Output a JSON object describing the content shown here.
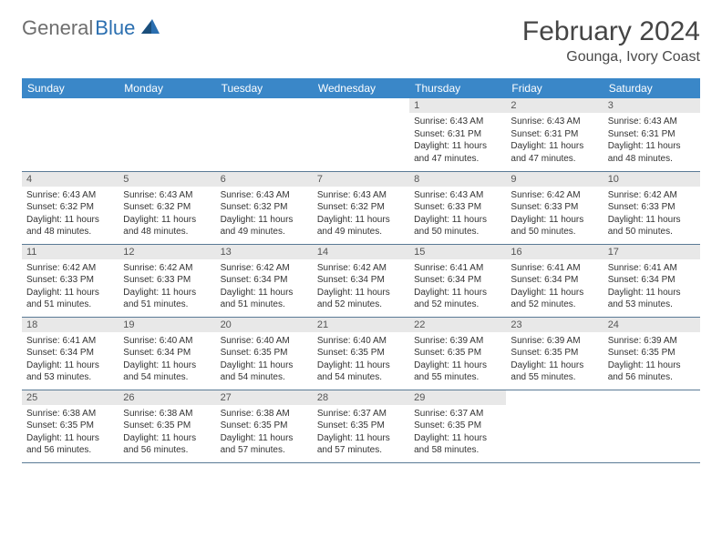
{
  "logo": {
    "gray": "General",
    "blue": "Blue"
  },
  "title": "February 2024",
  "location": "Gounga, Ivory Coast",
  "colors": {
    "header_bg": "#3a87c8",
    "header_text": "#ffffff",
    "daynum_bg": "#e8e8e8",
    "border": "#5a7a95",
    "logo_gray": "#6e6e6e",
    "logo_blue": "#2b6fb0"
  },
  "weekdays": [
    "Sunday",
    "Monday",
    "Tuesday",
    "Wednesday",
    "Thursday",
    "Friday",
    "Saturday"
  ],
  "weeks": [
    [
      {
        "n": "",
        "sr": "",
        "ss": "",
        "dl": ""
      },
      {
        "n": "",
        "sr": "",
        "ss": "",
        "dl": ""
      },
      {
        "n": "",
        "sr": "",
        "ss": "",
        "dl": ""
      },
      {
        "n": "",
        "sr": "",
        "ss": "",
        "dl": ""
      },
      {
        "n": "1",
        "sr": "Sunrise: 6:43 AM",
        "ss": "Sunset: 6:31 PM",
        "dl": "Daylight: 11 hours and 47 minutes."
      },
      {
        "n": "2",
        "sr": "Sunrise: 6:43 AM",
        "ss": "Sunset: 6:31 PM",
        "dl": "Daylight: 11 hours and 47 minutes."
      },
      {
        "n": "3",
        "sr": "Sunrise: 6:43 AM",
        "ss": "Sunset: 6:31 PM",
        "dl": "Daylight: 11 hours and 48 minutes."
      }
    ],
    [
      {
        "n": "4",
        "sr": "Sunrise: 6:43 AM",
        "ss": "Sunset: 6:32 PM",
        "dl": "Daylight: 11 hours and 48 minutes."
      },
      {
        "n": "5",
        "sr": "Sunrise: 6:43 AM",
        "ss": "Sunset: 6:32 PM",
        "dl": "Daylight: 11 hours and 48 minutes."
      },
      {
        "n": "6",
        "sr": "Sunrise: 6:43 AM",
        "ss": "Sunset: 6:32 PM",
        "dl": "Daylight: 11 hours and 49 minutes."
      },
      {
        "n": "7",
        "sr": "Sunrise: 6:43 AM",
        "ss": "Sunset: 6:32 PM",
        "dl": "Daylight: 11 hours and 49 minutes."
      },
      {
        "n": "8",
        "sr": "Sunrise: 6:43 AM",
        "ss": "Sunset: 6:33 PM",
        "dl": "Daylight: 11 hours and 50 minutes."
      },
      {
        "n": "9",
        "sr": "Sunrise: 6:42 AM",
        "ss": "Sunset: 6:33 PM",
        "dl": "Daylight: 11 hours and 50 minutes."
      },
      {
        "n": "10",
        "sr": "Sunrise: 6:42 AM",
        "ss": "Sunset: 6:33 PM",
        "dl": "Daylight: 11 hours and 50 minutes."
      }
    ],
    [
      {
        "n": "11",
        "sr": "Sunrise: 6:42 AM",
        "ss": "Sunset: 6:33 PM",
        "dl": "Daylight: 11 hours and 51 minutes."
      },
      {
        "n": "12",
        "sr": "Sunrise: 6:42 AM",
        "ss": "Sunset: 6:33 PM",
        "dl": "Daylight: 11 hours and 51 minutes."
      },
      {
        "n": "13",
        "sr": "Sunrise: 6:42 AM",
        "ss": "Sunset: 6:34 PM",
        "dl": "Daylight: 11 hours and 51 minutes."
      },
      {
        "n": "14",
        "sr": "Sunrise: 6:42 AM",
        "ss": "Sunset: 6:34 PM",
        "dl": "Daylight: 11 hours and 52 minutes."
      },
      {
        "n": "15",
        "sr": "Sunrise: 6:41 AM",
        "ss": "Sunset: 6:34 PM",
        "dl": "Daylight: 11 hours and 52 minutes."
      },
      {
        "n": "16",
        "sr": "Sunrise: 6:41 AM",
        "ss": "Sunset: 6:34 PM",
        "dl": "Daylight: 11 hours and 52 minutes."
      },
      {
        "n": "17",
        "sr": "Sunrise: 6:41 AM",
        "ss": "Sunset: 6:34 PM",
        "dl": "Daylight: 11 hours and 53 minutes."
      }
    ],
    [
      {
        "n": "18",
        "sr": "Sunrise: 6:41 AM",
        "ss": "Sunset: 6:34 PM",
        "dl": "Daylight: 11 hours and 53 minutes."
      },
      {
        "n": "19",
        "sr": "Sunrise: 6:40 AM",
        "ss": "Sunset: 6:34 PM",
        "dl": "Daylight: 11 hours and 54 minutes."
      },
      {
        "n": "20",
        "sr": "Sunrise: 6:40 AM",
        "ss": "Sunset: 6:35 PM",
        "dl": "Daylight: 11 hours and 54 minutes."
      },
      {
        "n": "21",
        "sr": "Sunrise: 6:40 AM",
        "ss": "Sunset: 6:35 PM",
        "dl": "Daylight: 11 hours and 54 minutes."
      },
      {
        "n": "22",
        "sr": "Sunrise: 6:39 AM",
        "ss": "Sunset: 6:35 PM",
        "dl": "Daylight: 11 hours and 55 minutes."
      },
      {
        "n": "23",
        "sr": "Sunrise: 6:39 AM",
        "ss": "Sunset: 6:35 PM",
        "dl": "Daylight: 11 hours and 55 minutes."
      },
      {
        "n": "24",
        "sr": "Sunrise: 6:39 AM",
        "ss": "Sunset: 6:35 PM",
        "dl": "Daylight: 11 hours and 56 minutes."
      }
    ],
    [
      {
        "n": "25",
        "sr": "Sunrise: 6:38 AM",
        "ss": "Sunset: 6:35 PM",
        "dl": "Daylight: 11 hours and 56 minutes."
      },
      {
        "n": "26",
        "sr": "Sunrise: 6:38 AM",
        "ss": "Sunset: 6:35 PM",
        "dl": "Daylight: 11 hours and 56 minutes."
      },
      {
        "n": "27",
        "sr": "Sunrise: 6:38 AM",
        "ss": "Sunset: 6:35 PM",
        "dl": "Daylight: 11 hours and 57 minutes."
      },
      {
        "n": "28",
        "sr": "Sunrise: 6:37 AM",
        "ss": "Sunset: 6:35 PM",
        "dl": "Daylight: 11 hours and 57 minutes."
      },
      {
        "n": "29",
        "sr": "Sunrise: 6:37 AM",
        "ss": "Sunset: 6:35 PM",
        "dl": "Daylight: 11 hours and 58 minutes."
      },
      {
        "n": "",
        "sr": "",
        "ss": "",
        "dl": ""
      },
      {
        "n": "",
        "sr": "",
        "ss": "",
        "dl": ""
      }
    ]
  ]
}
